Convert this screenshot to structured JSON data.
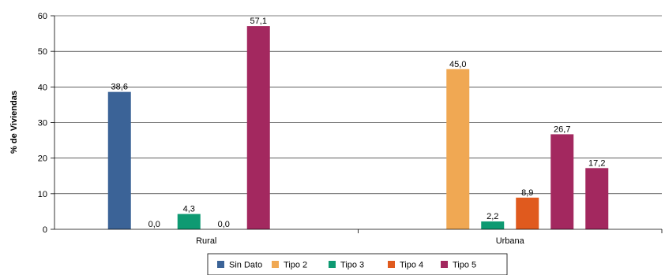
{
  "chart_data": {
    "type": "bar",
    "categories": [
      "Rural",
      "Urbana"
    ],
    "ylabel": "% de Viviendas",
    "xlabel": "",
    "ylim": [
      0,
      60
    ],
    "yticks": [
      0,
      10,
      20,
      30,
      40,
      50,
      60
    ],
    "grid": true,
    "legend_position": "bottom",
    "series": [
      {
        "name": "Sin Dato",
        "color": "#3B6397",
        "values": [
          38.6,
          null
        ],
        "labels": [
          "38,6",
          ""
        ]
      },
      {
        "name": "Tipo 2",
        "color": "#F0A853",
        "values": [
          0.0,
          45.0
        ],
        "labels": [
          "0,0",
          "45,0"
        ]
      },
      {
        "name": "Tipo 3",
        "color": "#0E9A72",
        "values": [
          4.3,
          2.2
        ],
        "labels": [
          "4,3",
          "2,2"
        ]
      },
      {
        "name": "Tipo 4",
        "color": "#E05A1E",
        "values": [
          0.0,
          8.9
        ],
        "labels": [
          "0,0",
          "8,9"
        ]
      },
      {
        "name": "Tipo 5",
        "color": "#A3285F",
        "values": [
          57.1,
          26.7
        ],
        "labels": [
          "57,1",
          "26,7"
        ]
      },
      {
        "name": "",
        "color": "#A3285F",
        "values": [
          null,
          17.2
        ],
        "labels": [
          "",
          "17,2"
        ]
      }
    ]
  }
}
